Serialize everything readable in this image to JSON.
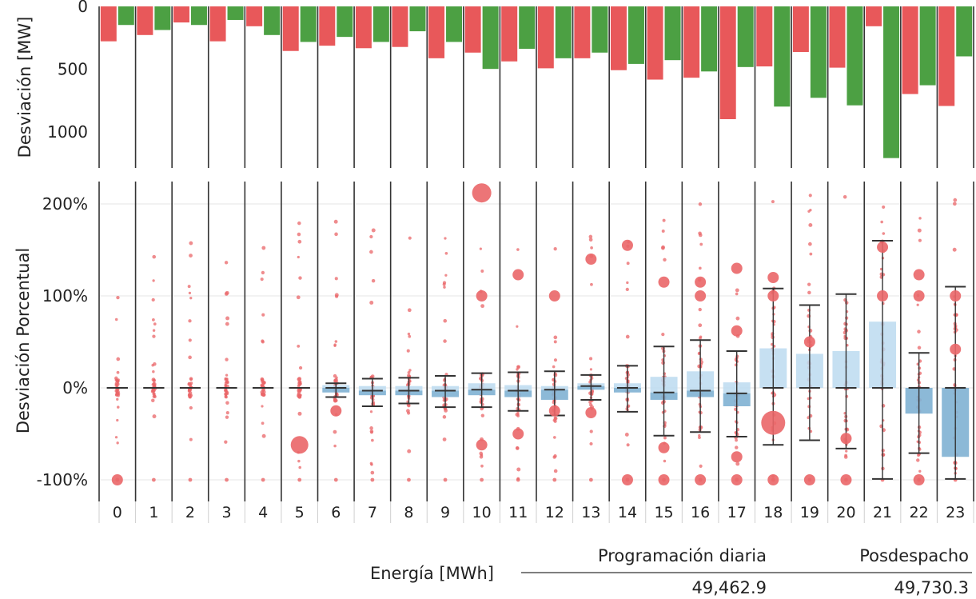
{
  "chart_data": [
    {
      "type": "bar",
      "ylabel": "Desviación [MW]",
      "yticks": [
        "0",
        "500",
        "1000"
      ],
      "ylim": [
        0,
        1200
      ],
      "y_inverted": true,
      "categories": [
        "0",
        "1",
        "2",
        "3",
        "4",
        "5",
        "6",
        "7",
        "8",
        "9",
        "10",
        "11",
        "12",
        "13",
        "14",
        "15",
        "16",
        "17",
        "18",
        "19",
        "20",
        "21",
        "22",
        "23"
      ],
      "series": [
        {
          "color": "#e8585a",
          "values": [
            278,
            228,
            128,
            278,
            158,
            355,
            313,
            333,
            323,
            413,
            368,
            438,
            493,
            413,
            508,
            583,
            568,
            898,
            478,
            363,
            488,
            158,
            698,
            793
          ]
        },
        {
          "color": "#4ca043",
          "values": [
            148,
            188,
            148,
            108,
            228,
            283,
            243,
            283,
            198,
            283,
            498,
            338,
            413,
            368,
            458,
            428,
            518,
            483,
            798,
            728,
            788,
            1208,
            628,
            398
          ]
        }
      ]
    },
    {
      "type": "box",
      "ylabel": "Desviación Porcentual",
      "yticks": [
        "200%",
        "100%",
        "0%",
        "-100%"
      ],
      "ylim": [
        -120,
        225
      ],
      "categories": [
        "0",
        "1",
        "2",
        "3",
        "4",
        "5",
        "6",
        "7",
        "8",
        "9",
        "10",
        "11",
        "12",
        "13",
        "14",
        "15",
        "16",
        "17",
        "18",
        "19",
        "20",
        "21",
        "22",
        "23"
      ],
      "box_colors": [
        "#bcdaf0",
        "#7fb1d3"
      ],
      "point_color": "#ea6668",
      "boxes": [
        {
          "q1": 0,
          "median": 0,
          "q3": 0,
          "lw": 0,
          "uw": 0
        },
        {
          "q1": 0,
          "median": 0,
          "q3": 0,
          "lw": 0,
          "uw": 0
        },
        {
          "q1": 0,
          "median": 0,
          "q3": 0,
          "lw": 0,
          "uw": 0
        },
        {
          "q1": 0,
          "median": 0,
          "q3": 0,
          "lw": 0,
          "uw": 0
        },
        {
          "q1": 0,
          "median": 0,
          "q3": 0,
          "lw": 0,
          "uw": 0
        },
        {
          "q1": 0,
          "median": 0,
          "q3": 0,
          "lw": 0,
          "uw": 0
        },
        {
          "q1": -5,
          "median": 0,
          "q3": 3,
          "lw": -10,
          "uw": 5
        },
        {
          "q1": -8,
          "median": -3,
          "q3": 2,
          "lw": -20,
          "uw": 10
        },
        {
          "q1": -8,
          "median": -3,
          "q3": 2,
          "lw": -17,
          "uw": 11
        },
        {
          "q1": -10,
          "median": -3,
          "q3": 2,
          "lw": -21,
          "uw": 13
        },
        {
          "q1": -8,
          "median": -2,
          "q3": 5,
          "lw": -21,
          "uw": 16
        },
        {
          "q1": -10,
          "median": -3,
          "q3": 3,
          "lw": -25,
          "uw": 17
        },
        {
          "q1": -13,
          "median": -2,
          "q3": 2,
          "lw": -30,
          "uw": 18
        },
        {
          "q1": -2,
          "median": 2,
          "q3": 5,
          "lw": -13,
          "uw": 14
        },
        {
          "q1": -5,
          "median": 0,
          "q3": 5,
          "lw": -26,
          "uw": 24
        },
        {
          "q1": -13,
          "median": -5,
          "q3": 12,
          "lw": -52,
          "uw": 45
        },
        {
          "q1": -10,
          "median": -3,
          "q3": 18,
          "lw": -48,
          "uw": 52
        },
        {
          "q1": -20,
          "median": -6,
          "q3": 6,
          "lw": -53,
          "uw": 40
        },
        {
          "q1": 0,
          "median": 0,
          "q3": 43,
          "lw": -62,
          "uw": 108
        },
        {
          "q1": 0,
          "median": 0,
          "q3": 37,
          "lw": -57,
          "uw": 90
        },
        {
          "q1": 0,
          "median": 0,
          "q3": 40,
          "lw": -66,
          "uw": 102
        },
        {
          "q1": 0,
          "median": 0,
          "q3": 72,
          "lw": -99,
          "uw": 160
        },
        {
          "q1": -28,
          "median": 0,
          "q3": 0,
          "lw": -71,
          "uw": 38
        },
        {
          "q1": -75,
          "median": 0,
          "q3": 0,
          "lw": -99,
          "uw": 110
        }
      ],
      "big_points": [
        {
          "x": "0",
          "y": -100
        },
        {
          "x": "5",
          "y": -62
        },
        {
          "x": "6",
          "y": -25
        },
        {
          "x": "10",
          "y": 212
        },
        {
          "x": "10",
          "y": 100
        },
        {
          "x": "10",
          "y": -62
        },
        {
          "x": "11",
          "y": 123
        },
        {
          "x": "11",
          "y": -50
        },
        {
          "x": "12",
          "y": 100
        },
        {
          "x": "12",
          "y": -25
        },
        {
          "x": "13",
          "y": 140
        },
        {
          "x": "13",
          "y": -27
        },
        {
          "x": "14",
          "y": 155
        },
        {
          "x": "14",
          "y": -100
        },
        {
          "x": "15",
          "y": 115
        },
        {
          "x": "15",
          "y": -100
        },
        {
          "x": "15",
          "y": -65
        },
        {
          "x": "16",
          "y": 115
        },
        {
          "x": "16",
          "y": 100
        },
        {
          "x": "16",
          "y": -100
        },
        {
          "x": "17",
          "y": 130
        },
        {
          "x": "17",
          "y": 62
        },
        {
          "x": "17",
          "y": -75
        },
        {
          "x": "17",
          "y": -100
        },
        {
          "x": "18",
          "y": 100
        },
        {
          "x": "18",
          "y": 120
        },
        {
          "x": "18",
          "y": -38
        },
        {
          "x": "18",
          "y": -100
        },
        {
          "x": "19",
          "y": 50
        },
        {
          "x": "19",
          "y": -100
        },
        {
          "x": "20",
          "y": -55
        },
        {
          "x": "20",
          "y": -100
        },
        {
          "x": "21",
          "y": 153
        },
        {
          "x": "21",
          "y": 100
        },
        {
          "x": "22",
          "y": 123
        },
        {
          "x": "22",
          "y": 100
        },
        {
          "x": "22",
          "y": -100
        },
        {
          "x": "23",
          "y": 100
        },
        {
          "x": "23",
          "y": 42
        }
      ]
    }
  ],
  "xlabel": "",
  "table": {
    "row_label": "Energía [MWh]",
    "headers": [
      "Programación diaria",
      "Posdespacho"
    ],
    "values": [
      "49,462.9",
      "49,730.3"
    ]
  }
}
